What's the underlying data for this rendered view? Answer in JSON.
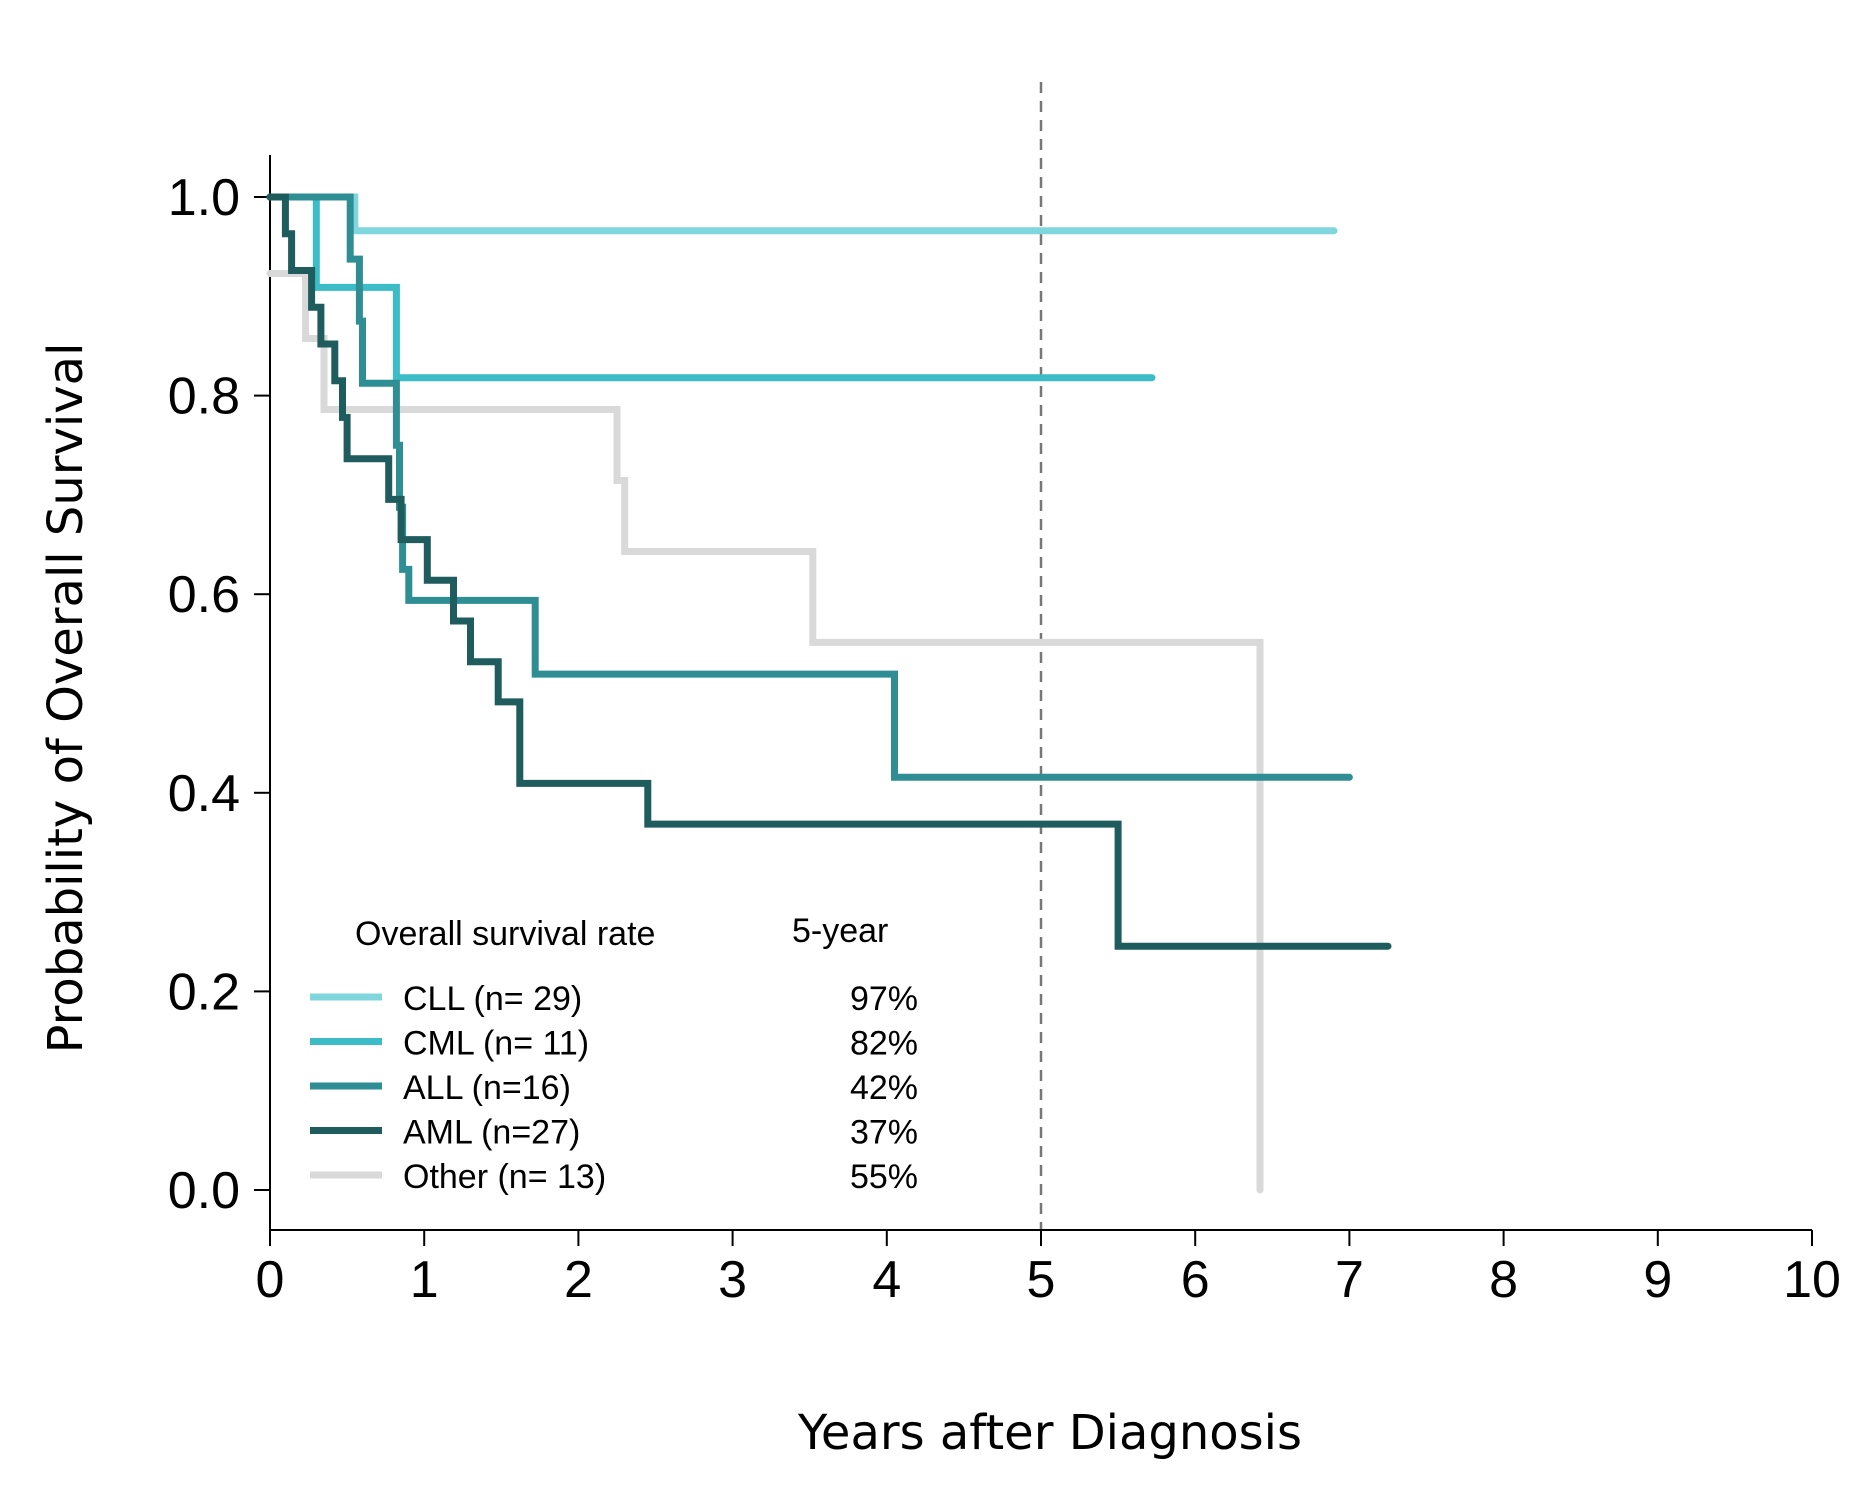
{
  "chart_data": {
    "type": "line",
    "subtype": "kaplan-meier step curve",
    "title": "",
    "xlabel": "Years after Diagnosis",
    "ylabel": "Probability of Overall Survival",
    "xlim": [
      0,
      10
    ],
    "ylim": [
      0,
      1
    ],
    "x_ticks": [
      "0",
      "1",
      "2",
      "3",
      "4",
      "5",
      "6",
      "7",
      "8",
      "9",
      "10"
    ],
    "y_ticks": [
      "0.0",
      "0.2",
      "0.4",
      "0.6",
      "0.8",
      "1.0"
    ],
    "grid": false,
    "reference_line": {
      "x": 5,
      "style": "dashed",
      "color": "#777777"
    },
    "legend": {
      "placement": "bottom-left",
      "header_label": "Overall survival rate",
      "header_value": "5-year"
    },
    "series": [
      {
        "name": "CLL (n= 29)",
        "rate_5yr": "97%",
        "color": "#7fd6dc",
        "points": [
          [
            0,
            1.0
          ],
          [
            0.55,
            1.0
          ],
          [
            0.55,
            0.966
          ],
          [
            6.9,
            0.966
          ]
        ]
      },
      {
        "name": "CML (n= 11)",
        "rate_5yr": "82%",
        "color": "#3bbcc6",
        "points": [
          [
            0,
            1.0
          ],
          [
            0.3,
            1.0
          ],
          [
            0.3,
            0.909
          ],
          [
            0.82,
            0.909
          ],
          [
            0.82,
            0.818
          ],
          [
            5.72,
            0.818
          ]
        ]
      },
      {
        "name": "ALL (n=16)",
        "rate_5yr": "42%",
        "color": "#2e8e94",
        "points": [
          [
            0,
            1.0
          ],
          [
            0.52,
            1.0
          ],
          [
            0.52,
            0.9375
          ],
          [
            0.58,
            0.9375
          ],
          [
            0.58,
            0.875
          ],
          [
            0.6,
            0.875
          ],
          [
            0.6,
            0.8125
          ],
          [
            0.82,
            0.8125
          ],
          [
            0.82,
            0.75
          ],
          [
            0.84,
            0.75
          ],
          [
            0.84,
            0.6875
          ],
          [
            0.86,
            0.6875
          ],
          [
            0.86,
            0.625
          ],
          [
            0.9,
            0.625
          ],
          [
            0.9,
            0.5938
          ],
          [
            1.72,
            0.5938
          ],
          [
            1.72,
            0.5195
          ],
          [
            4.05,
            0.5195
          ],
          [
            4.05,
            0.4156
          ],
          [
            7.0,
            0.4156
          ]
        ]
      },
      {
        "name": "AML (n=27)",
        "rate_5yr": "37%",
        "color": "#1e5c5e",
        "points": [
          [
            0,
            1.0
          ],
          [
            0.1,
            1.0
          ],
          [
            0.1,
            0.963
          ],
          [
            0.14,
            0.963
          ],
          [
            0.14,
            0.926
          ],
          [
            0.27,
            0.926
          ],
          [
            0.27,
            0.889
          ],
          [
            0.33,
            0.889
          ],
          [
            0.33,
            0.852
          ],
          [
            0.42,
            0.852
          ],
          [
            0.42,
            0.815
          ],
          [
            0.47,
            0.815
          ],
          [
            0.47,
            0.778
          ],
          [
            0.5,
            0.778
          ],
          [
            0.5,
            0.7365
          ],
          [
            0.77,
            0.7365
          ],
          [
            0.77,
            0.6955
          ],
          [
            0.85,
            0.6955
          ],
          [
            0.85,
            0.655
          ],
          [
            1.02,
            0.655
          ],
          [
            1.02,
            0.614
          ],
          [
            1.19,
            0.614
          ],
          [
            1.19,
            0.573
          ],
          [
            1.3,
            0.573
          ],
          [
            1.3,
            0.532
          ],
          [
            1.48,
            0.532
          ],
          [
            1.48,
            0.4915
          ],
          [
            1.62,
            0.4915
          ],
          [
            1.62,
            0.4095
          ],
          [
            2.45,
            0.4095
          ],
          [
            2.45,
            0.3685
          ],
          [
            5.5,
            0.3685
          ],
          [
            5.5,
            0.2455
          ],
          [
            7.25,
            0.2455
          ]
        ]
      },
      {
        "name": "Other (n= 13)",
        "rate_5yr": "55%",
        "color": "#d9d9d9",
        "points": [
          [
            0,
            0.923
          ],
          [
            0.23,
            0.923
          ],
          [
            0.23,
            0.8575
          ],
          [
            0.35,
            0.8575
          ],
          [
            0.35,
            0.786
          ],
          [
            2.25,
            0.786
          ],
          [
            2.25,
            0.7145
          ],
          [
            2.3,
            0.7145
          ],
          [
            2.3,
            0.643
          ],
          [
            3.52,
            0.643
          ],
          [
            3.52,
            0.5515
          ],
          [
            6.42,
            0.5515
          ],
          [
            6.42,
            0.0
          ]
        ]
      }
    ]
  }
}
